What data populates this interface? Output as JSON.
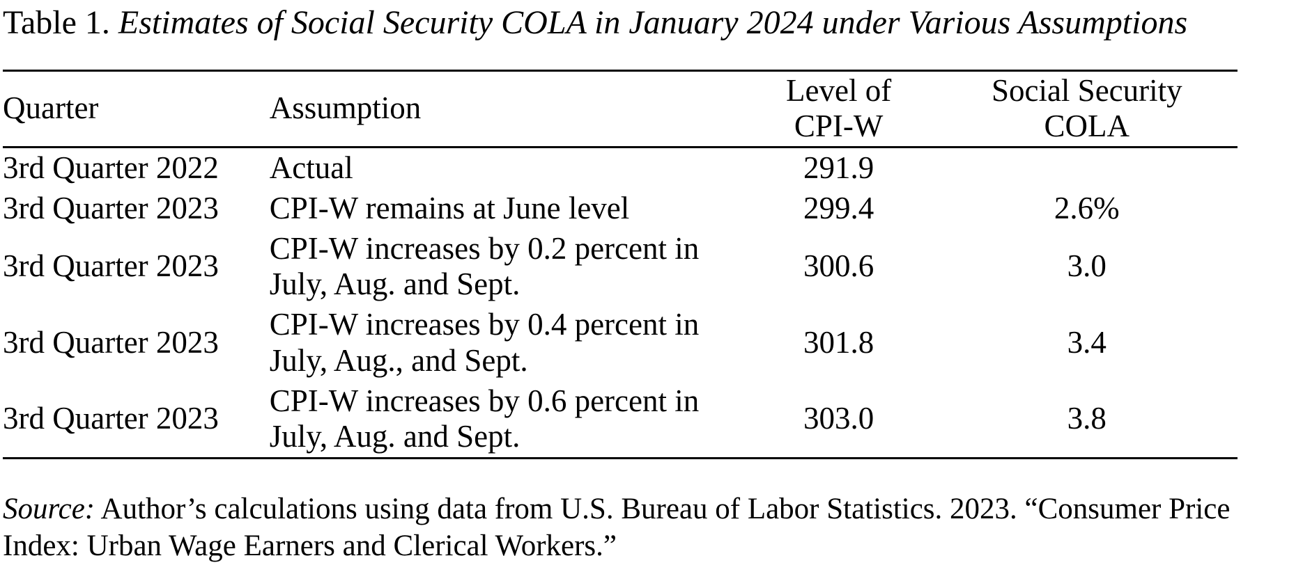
{
  "page": {
    "background_color": "#ffffff",
    "text_color": "#000000"
  },
  "title": {
    "prefix": "Table 1. ",
    "italic_text": "Estimates of Social Security COLA in January 2024 under Various Assumptions"
  },
  "table": {
    "headers": [
      {
        "label": "Quarter"
      },
      {
        "label": "Assumption"
      },
      {
        "label": "Level of\nCPI-W"
      },
      {
        "label": "Social Security\nCOLA"
      }
    ],
    "rows": [
      {
        "quarter": "3rd Quarter 2022",
        "assumption": "Actual",
        "cpi_w_level": "291.9",
        "cola": ""
      },
      {
        "quarter": "3rd Quarter 2023",
        "assumption": "CPI-W remains at June level",
        "cpi_w_level": "299.4",
        "cola": "2.6%"
      },
      {
        "quarter": "3rd Quarter 2023",
        "assumption": "CPI-W increases by 0.2 percent in\nJuly, Aug. and Sept.",
        "cpi_w_level": "300.6",
        "cola": "3.0"
      },
      {
        "quarter": "3rd Quarter 2023",
        "assumption": "CPI-W increases by 0.4 percent in\nJuly, Aug., and Sept.",
        "cpi_w_level": "301.8",
        "cola": "3.4"
      },
      {
        "quarter": "3rd Quarter 2023",
        "assumption": "CPI-W increases by 0.6 percent in\nJuly, Aug. and Sept.",
        "cpi_w_level": "303.0",
        "cola": "3.8"
      }
    ]
  },
  "source": {
    "label": "Source:",
    "text": " Author’s calculations using data from U.S. Bureau of Labor Statistics. 2023. “Consumer Price Index: Urban Wage Earners and Clerical Workers.”"
  },
  "chart_data": {
    "type": "table",
    "title": "Table 1. Estimates of Social Security COLA in January 2024 under Various Assumptions",
    "columns": [
      "Quarter",
      "Assumption",
      "Level of CPI-W",
      "Social Security COLA"
    ],
    "rows": [
      [
        "3rd Quarter 2022",
        "Actual",
        291.9,
        null
      ],
      [
        "3rd Quarter 2023",
        "CPI-W remains at June level",
        299.4,
        "2.6%"
      ],
      [
        "3rd Quarter 2023",
        "CPI-W increases by 0.2 percent in July, Aug. and Sept.",
        300.6,
        "3.0"
      ],
      [
        "3rd Quarter 2023",
        "CPI-W increases by 0.4 percent in July, Aug., and Sept.",
        301.8,
        "3.4"
      ],
      [
        "3rd Quarter 2023",
        "CPI-W increases by 0.6 percent in July, Aug. and Sept.",
        303.0,
        "3.8"
      ]
    ]
  }
}
